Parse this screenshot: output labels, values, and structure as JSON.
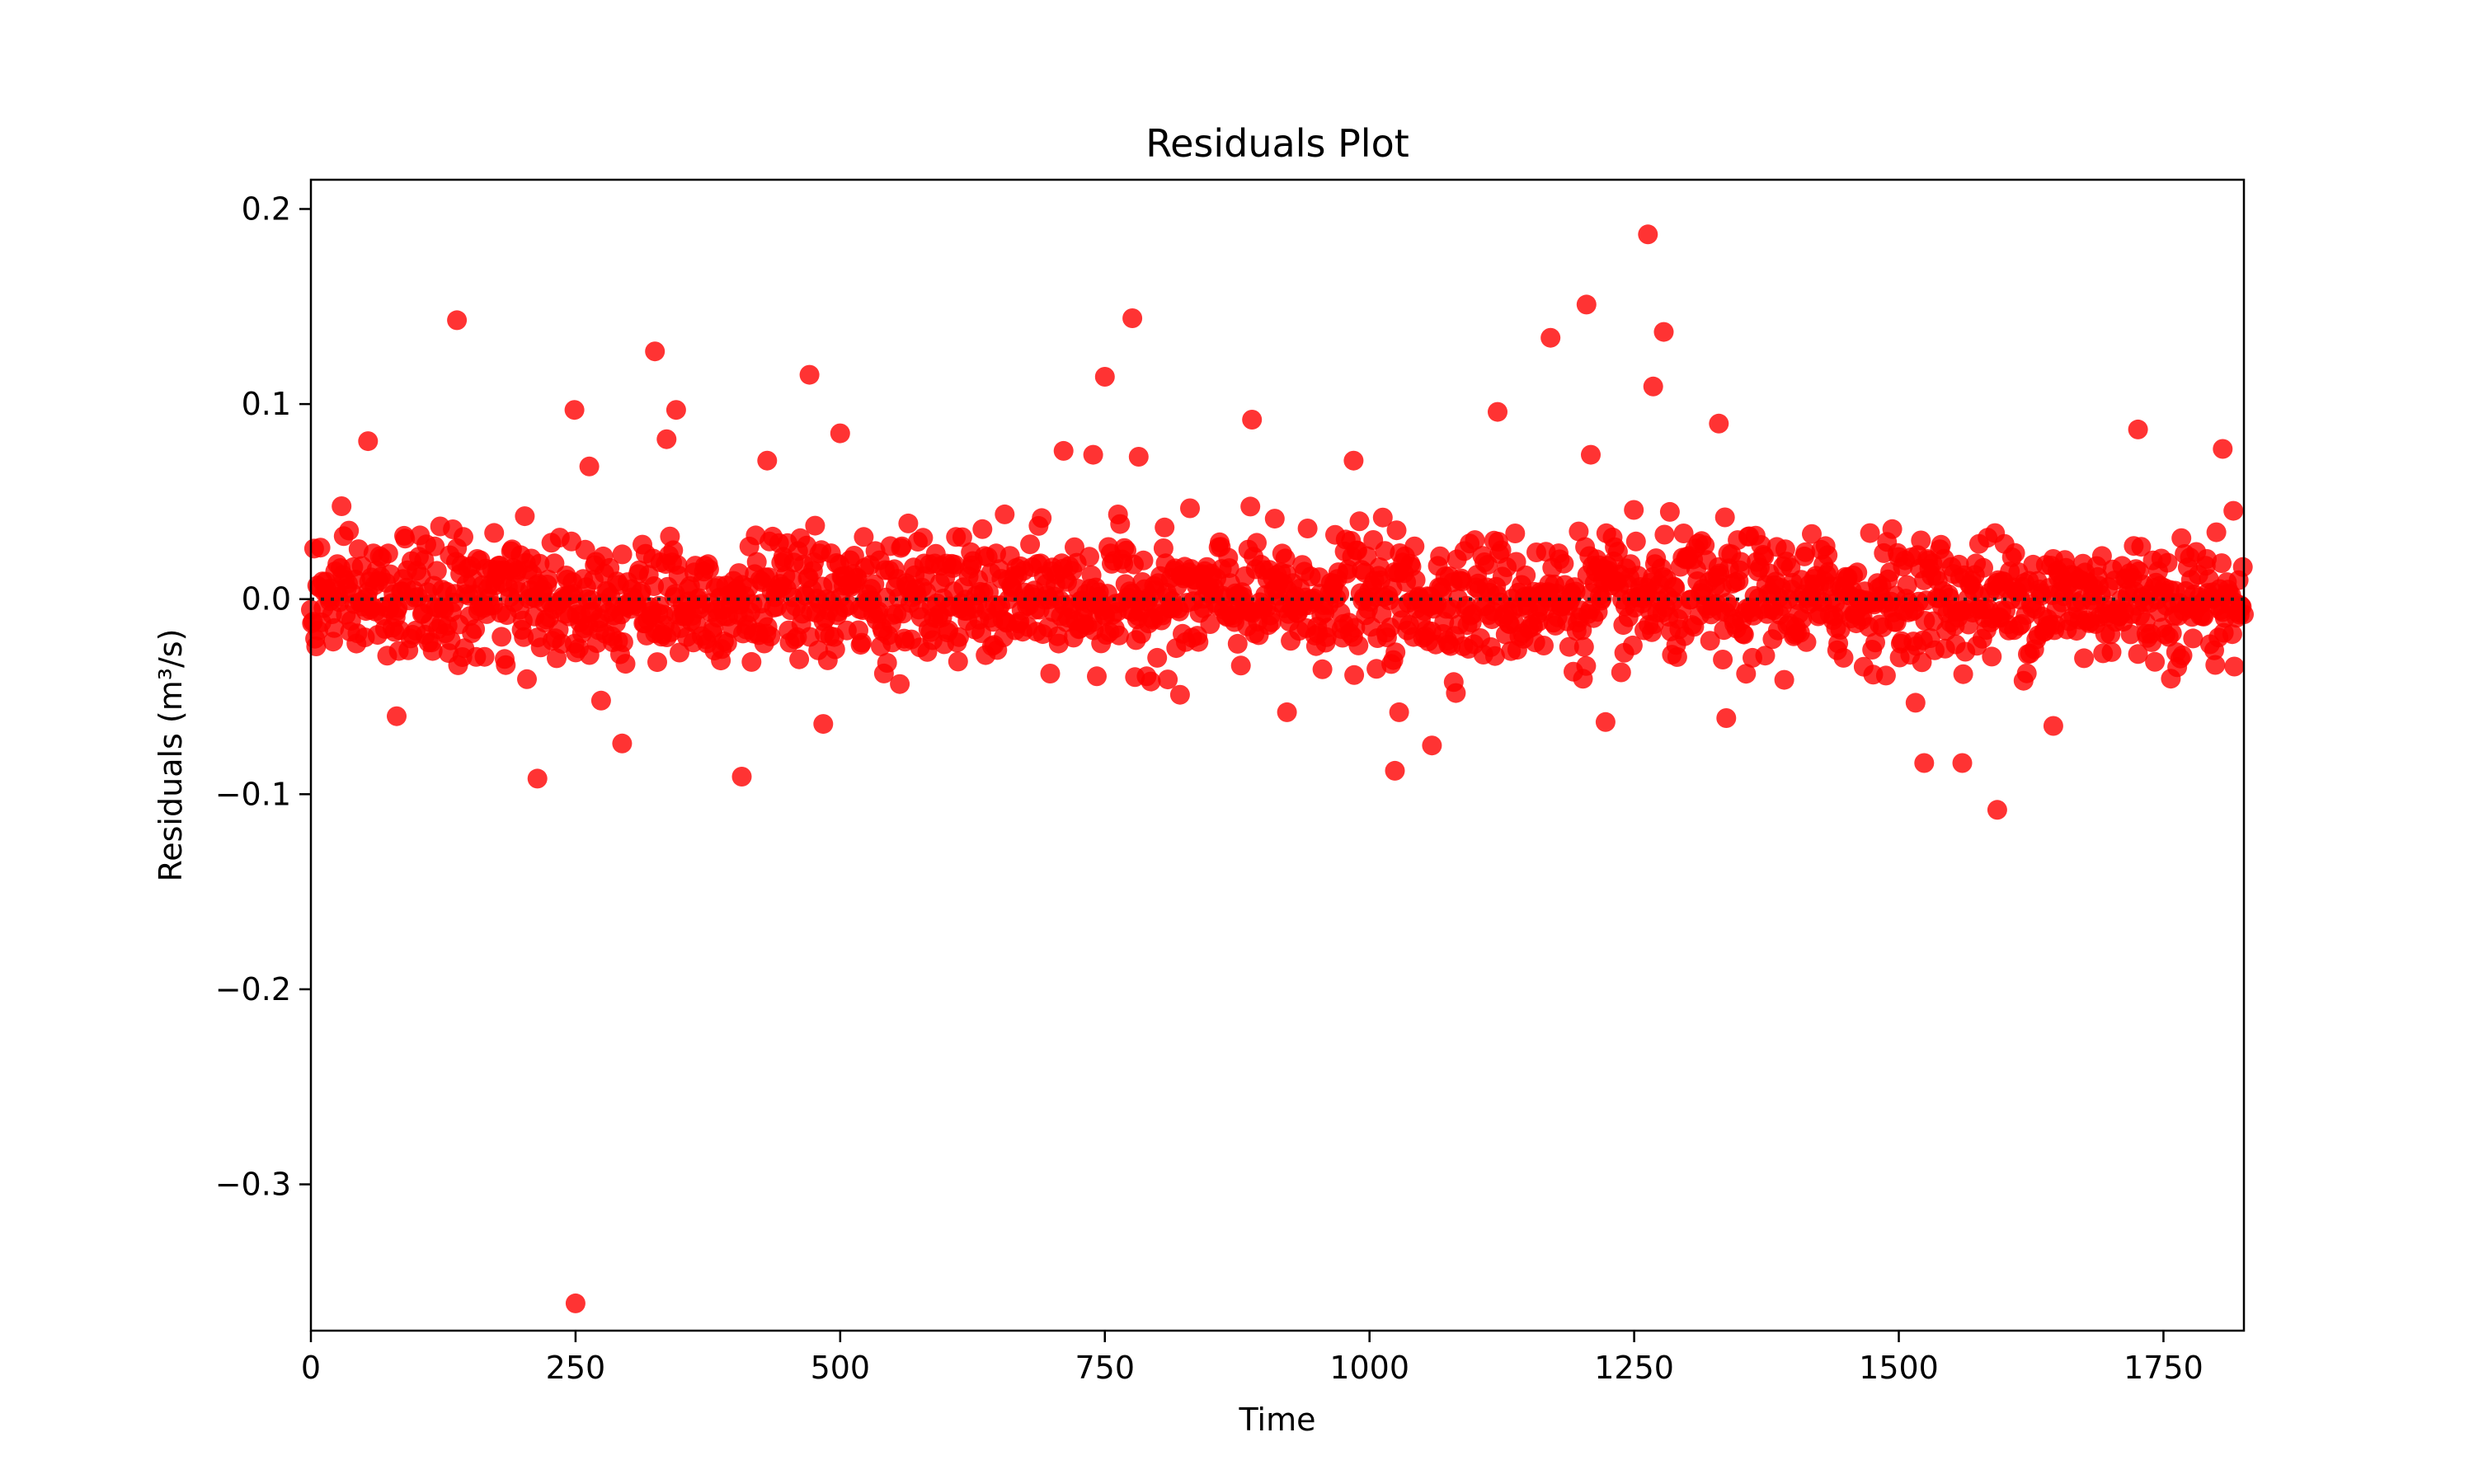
{
  "chart_data": {
    "type": "scatter",
    "title": "Residuals Plot",
    "xlabel": "Time",
    "ylabel": "Residuals (m³/s)",
    "xlim": [
      0,
      1826
    ],
    "ylim": [
      -0.375,
      0.215
    ],
    "x_ticks": [
      0,
      250,
      500,
      750,
      1000,
      1250,
      1500,
      1750
    ],
    "x_tick_labels": [
      "0",
      "250",
      "500",
      "750",
      "1000",
      "1250",
      "1500",
      "1750"
    ],
    "y_ticks": [
      0.2,
      0.1,
      0.0,
      -0.1,
      -0.2,
      -0.3
    ],
    "y_tick_labels": [
      "0.2",
      "0.1",
      "0.0",
      "−0.1",
      "−0.2",
      "−0.3"
    ],
    "grid": false,
    "legend": "none",
    "reference_line": {
      "y": 0.0,
      "style": "dotted",
      "color": "#000000"
    },
    "series": [
      {
        "color": "#ff0000",
        "marker": "circle",
        "outliers": {
          "x": [
            250,
            138,
            776,
            1263,
            1205,
            1278,
            1171,
            325,
            471,
            750,
            1268,
            249,
            345,
            1121,
            889,
            54,
            1330,
            1593,
            1524,
            1560,
            1024,
            214,
            407,
            1059,
            294,
            484,
            81,
            1337,
            1646,
            922,
            1223,
            1028,
            821,
            1726,
            1806,
            500,
            711,
            739,
            782,
            336,
            431,
            1209,
            263,
            985
          ],
          "y": [
            -0.361,
            0.143,
            0.144,
            0.187,
            0.151,
            0.137,
            0.134,
            0.127,
            0.115,
            0.114,
            0.109,
            0.097,
            0.097,
            0.096,
            0.092,
            0.081,
            0.09,
            -0.108,
            -0.084,
            -0.084,
            -0.088,
            -0.092,
            -0.091,
            -0.075,
            -0.074,
            -0.064,
            -0.06,
            -0.061,
            -0.065,
            -0.058,
            -0.063,
            -0.058,
            -0.049,
            0.087,
            0.077,
            0.085,
            0.076,
            0.074,
            0.073,
            0.082,
            0.071,
            0.074,
            0.068,
            0.071
          ]
        },
        "bulk": {
          "n_points": 1826,
          "x_range": [
            0,
            1826
          ],
          "mean": 0.0,
          "spread_sd": 0.016
        }
      }
    ]
  }
}
